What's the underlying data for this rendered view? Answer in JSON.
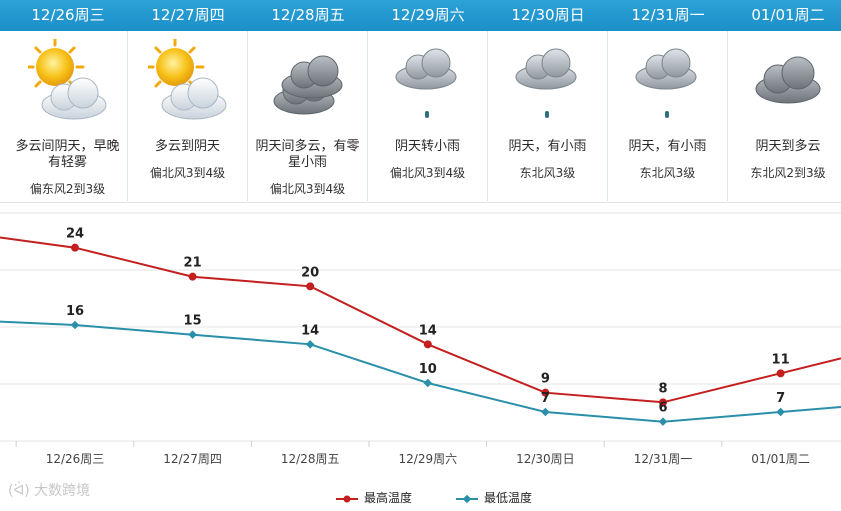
{
  "forecast": {
    "days": [
      {
        "date_label": "12/26周三",
        "desc": "多云间阴天，早晚有轻雾",
        "wind": "偏东风2到3级",
        "icon": "partly-cloudy-icon"
      },
      {
        "date_label": "12/27周四",
        "desc": "多云到阴天",
        "wind": "偏北风3到4级",
        "icon": "partly-cloudy-icon"
      },
      {
        "date_label": "12/28周五",
        "desc": "阴天间多云，有零星小雨",
        "wind": "偏北风3到4级",
        "icon": "overcast-icon"
      },
      {
        "date_label": "12/29周六",
        "desc": "阴天转小雨",
        "wind": "偏北风3到4级",
        "icon": "light-rain-icon"
      },
      {
        "date_label": "12/30周日",
        "desc": "阴天，有小雨",
        "wind": "东北风3级",
        "icon": "light-rain-icon"
      },
      {
        "date_label": "12/31周一",
        "desc": "阴天，有小雨",
        "wind": "东北风3级",
        "icon": "light-rain-icon"
      },
      {
        "date_label": "01/01周二",
        "desc": "阴天到多云",
        "wind": "东北风2到3级",
        "icon": "overcast-icon"
      }
    ]
  },
  "chart_data": {
    "type": "line",
    "categories": [
      "12/26周三",
      "12/27周四",
      "12/28周五",
      "12/29周六",
      "12/30周日",
      "12/31周一",
      "01/01周二"
    ],
    "series": [
      {
        "name": "最高温度",
        "color": "#c41f1f",
        "values": [
          24,
          21,
          20,
          14,
          9,
          8,
          11
        ]
      },
      {
        "name": "最低温度",
        "color": "#2a8fa8",
        "values": [
          16,
          15,
          14,
          10,
          7,
          6,
          7
        ]
      }
    ],
    "ylim": [
      4,
      28
    ],
    "title": "",
    "xlabel": "",
    "ylabel": ""
  },
  "legend": {
    "high_label": "最高温度",
    "low_label": "最低温度"
  },
  "watermark": "大数跨境"
}
